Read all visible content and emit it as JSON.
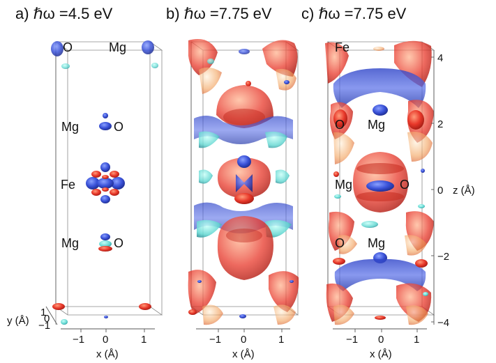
{
  "panels": [
    {
      "title": "a) ℏω =4.5 eV",
      "atoms": {
        "top_left": "O",
        "top_right": "Mg",
        "upper_left": "Mg",
        "upper_right": "O",
        "middle": "Fe",
        "lower_left": "Mg",
        "lower_right": "O"
      },
      "x_ticks": [
        "−1",
        "0",
        "1"
      ],
      "x_label": "x (Å)"
    },
    {
      "title": "b) ℏω =7.75 eV",
      "x_ticks": [
        "−1",
        "0",
        "1"
      ],
      "x_label": "x (Å)"
    },
    {
      "title": "c) ℏω =7.75 eV",
      "atoms": {
        "top_left": "Fe",
        "upper_left": "O",
        "upper_right": "Mg",
        "middle_left": "Mg",
        "middle_right": "O",
        "lower_left": "O",
        "lower_right": "Mg"
      },
      "x_ticks": [
        "−1",
        "0",
        "1"
      ],
      "x_label": "x (Å)"
    }
  ],
  "y_axis": {
    "label": "y (Å)",
    "ticks": [
      "1",
      "0",
      "−1"
    ]
  },
  "z_axis": {
    "label": "z (Å)",
    "ticks": [
      "4",
      "2",
      "0",
      "−2",
      "−4"
    ]
  },
  "colors": {
    "positive_lobe": "#e8382a",
    "negative_lobe": "#3a52d8",
    "cyan_lobe": "#5fd6d0",
    "orange_lobe": "#f2a15a"
  }
}
